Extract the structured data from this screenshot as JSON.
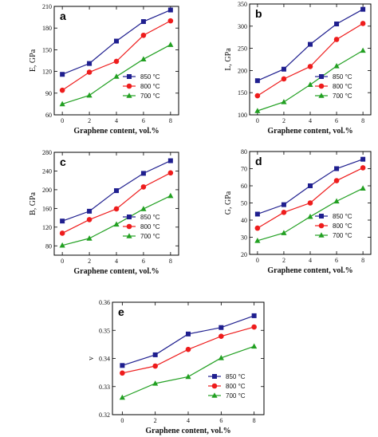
{
  "figure": {
    "colors": {
      "850": "#1f1f8f",
      "800": "#ee1c1c",
      "700": "#22a022"
    }
  },
  "chart_data": [
    {
      "panel": "a",
      "type": "line",
      "xlabel": "Graphene content, vol.%",
      "ylabel": "E, GPa",
      "x": [
        0,
        2,
        4,
        6,
        8
      ],
      "xticks": [
        "0",
        "2",
        "4",
        "6",
        "8"
      ],
      "ylim": [
        60,
        210
      ],
      "yticks": [
        "60",
        "90",
        "120",
        "150",
        "180",
        "210"
      ],
      "legend_position": "lower-right",
      "series": [
        {
          "name": "850 °C",
          "marker": "square",
          "values": [
            116,
            131,
            162,
            189,
            205
          ]
        },
        {
          "name": "800 °C",
          "marker": "circle",
          "values": [
            94,
            119,
            134,
            170,
            190
          ]
        },
        {
          "name": "700 °C",
          "marker": "triangle",
          "values": [
            75,
            87,
            113,
            137,
            157
          ]
        }
      ]
    },
    {
      "panel": "b",
      "type": "line",
      "xlabel": "Graphene content, vol.%",
      "ylabel": "L, GPa",
      "x": [
        0,
        2,
        4,
        6,
        8
      ],
      "xticks": [
        "0",
        "2",
        "4",
        "6",
        "8"
      ],
      "ylim": [
        100,
        350
      ],
      "yticks": [
        "100",
        "150",
        "200",
        "250",
        "300",
        "350"
      ],
      "legend_position": "lower-right",
      "series": [
        {
          "name": "850 °C",
          "marker": "square",
          "values": [
            177,
            203,
            259,
            305,
            338
          ]
        },
        {
          "name": "800 °C",
          "marker": "circle",
          "values": [
            143,
            181,
            209,
            270,
            306
          ]
        },
        {
          "name": "700 °C",
          "marker": "triangle",
          "values": [
            109,
            129,
            168,
            210,
            245
          ]
        }
      ]
    },
    {
      "panel": "c",
      "type": "line",
      "xlabel": "Graphene content, vol.%",
      "ylabel": "B, GPa",
      "x": [
        0,
        2,
        4,
        6,
        8
      ],
      "xticks": [
        "0",
        "2",
        "4",
        "6",
        "8"
      ],
      "ylim": [
        60,
        280
      ],
      "yticks": [
        "80",
        "120",
        "160",
        "200",
        "240",
        "280"
      ],
      "legend_position": "lower-right",
      "series": [
        {
          "name": "850 °C",
          "marker": "square",
          "values": [
            133,
            154,
            198,
            235,
            262
          ]
        },
        {
          "name": "800 °C",
          "marker": "circle",
          "values": [
            107,
            136,
            159,
            206,
            236
          ]
        },
        {
          "name": "700 °C",
          "marker": "triangle",
          "values": [
            81,
            96,
            126,
            159,
            187
          ]
        }
      ]
    },
    {
      "panel": "d",
      "type": "line",
      "xlabel": "Graphene content, vol.%",
      "ylabel": "G, GPa",
      "x": [
        0,
        2,
        4,
        6,
        8
      ],
      "xticks": [
        "0",
        "2",
        "4",
        "6",
        "8"
      ],
      "ylim": [
        20,
        80
      ],
      "yticks": [
        "20",
        "30",
        "40",
        "50",
        "60",
        "70",
        "80"
      ],
      "legend_position": "lower-right",
      "series": [
        {
          "name": "850 °C",
          "marker": "square",
          "values": [
            43.5,
            49,
            60,
            70,
            75.5
          ]
        },
        {
          "name": "800 °C",
          "marker": "circle",
          "values": [
            35.3,
            44.5,
            50,
            63,
            70.5
          ]
        },
        {
          "name": "700 °C",
          "marker": "triangle",
          "values": [
            28,
            32.5,
            42,
            51,
            58.5
          ]
        }
      ]
    },
    {
      "panel": "e",
      "type": "line",
      "xlabel": "Graphene content, vol.%",
      "ylabel": "ν",
      "x": [
        0,
        2,
        4,
        6,
        8
      ],
      "xticks": [
        "0",
        "2",
        "4",
        "6",
        "8"
      ],
      "ylim": [
        0.32,
        0.36
      ],
      "yticks": [
        "0.32",
        "0.33",
        "0.34",
        "0.35",
        "0.36"
      ],
      "legend_position": "lower-right",
      "series": [
        {
          "name": "850 °C",
          "marker": "square",
          "values": [
            0.3375,
            0.3413,
            0.3487,
            0.351,
            0.3552
          ]
        },
        {
          "name": "800 °C",
          "marker": "circle",
          "values": [
            0.3348,
            0.3373,
            0.3432,
            0.3479,
            0.3512
          ]
        },
        {
          "name": "700 °C",
          "marker": "triangle",
          "values": [
            0.3261,
            0.3311,
            0.3335,
            0.3402,
            0.3443
          ]
        }
      ]
    }
  ]
}
